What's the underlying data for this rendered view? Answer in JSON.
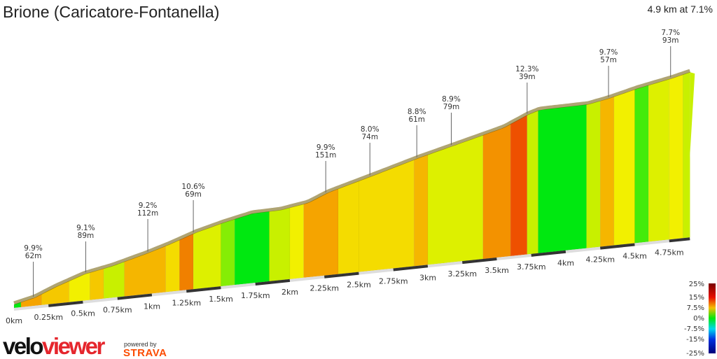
{
  "title": "Brione (Caricatore-Fontanella)",
  "summary": "4.9 km at 7.1%",
  "branding": {
    "logo_velo": "velo",
    "logo_viewer": "viewer",
    "powered_by": "powered by",
    "strava": "STRAVA",
    "strava_color": "#fc4c02",
    "viewer_color": "#e5262d"
  },
  "chart_data": {
    "type": "area",
    "title": "Brione (Caricatore-Fontanella)",
    "xlabel": "",
    "ylabel": "",
    "xlim": [
      0,
      4.9
    ],
    "x_ticks": [
      "0km",
      "0.25km",
      "0.5km",
      "0.75km",
      "1km",
      "1.25km",
      "1.5km",
      "1.75km",
      "2km",
      "2.25km",
      "2.5km",
      "2.75km",
      "3km",
      "3.25km",
      "3.5km",
      "3.75km",
      "4km",
      "4.25km",
      "4.5km",
      "4.75km"
    ],
    "profile": [
      [
        0,
        0
      ],
      [
        0.15,
        10
      ],
      [
        0.3,
        28
      ],
      [
        0.51,
        49
      ],
      [
        0.71,
        60
      ],
      [
        0.96,
        79
      ],
      [
        1.12,
        93
      ],
      [
        1.32,
        113
      ],
      [
        1.52,
        128
      ],
      [
        1.73,
        141
      ],
      [
        1.93,
        142
      ],
      [
        2.13,
        151
      ],
      [
        2.28,
        169
      ],
      [
        2.59,
        194
      ],
      [
        2.94,
        223
      ],
      [
        3.2,
        242
      ],
      [
        3.55,
        268
      ],
      [
        3.73,
        291
      ],
      [
        3.81,
        298
      ],
      [
        4.16,
        299
      ],
      [
        4.31,
        307
      ],
      [
        4.52,
        322
      ],
      [
        4.77,
        336
      ],
      [
        4.9,
        345
      ]
    ],
    "grade_segments": [
      [
        0,
        0
      ],
      [
        0.05,
        9
      ],
      [
        0.2,
        7
      ],
      [
        0.4,
        5
      ],
      [
        0.55,
        7
      ],
      [
        0.65,
        3
      ],
      [
        0.8,
        8
      ],
      [
        1.1,
        6
      ],
      [
        1.2,
        11
      ],
      [
        1.3,
        4
      ],
      [
        1.5,
        2
      ],
      [
        1.6,
        0
      ],
      [
        1.85,
        3
      ],
      [
        2.0,
        5
      ],
      [
        2.1,
        9
      ],
      [
        2.35,
        6
      ],
      [
        2.5,
        6
      ],
      [
        2.9,
        8
      ],
      [
        3.0,
        4
      ],
      [
        3.4,
        10
      ],
      [
        3.6,
        13
      ],
      [
        3.72,
        3
      ],
      [
        3.8,
        0
      ],
      [
        4.15,
        3
      ],
      [
        4.25,
        8
      ],
      [
        4.35,
        5
      ],
      [
        4.5,
        1
      ],
      [
        4.6,
        4
      ],
      [
        4.75,
        5
      ],
      [
        4.85,
        3
      ]
    ],
    "annotations": [
      {
        "km": 0.14,
        "grade": "9.9%",
        "length": "62m"
      },
      {
        "km": 0.52,
        "grade": "9.1%",
        "length": "89m"
      },
      {
        "km": 0.97,
        "grade": "9.2%",
        "length": "112m"
      },
      {
        "km": 1.3,
        "grade": "10.6%",
        "length": "69m"
      },
      {
        "km": 2.26,
        "grade": "9.9%",
        "length": "151m"
      },
      {
        "km": 2.58,
        "grade": "8.0%",
        "length": "74m"
      },
      {
        "km": 2.92,
        "grade": "8.8%",
        "length": "61m"
      },
      {
        "km": 3.17,
        "grade": "8.9%",
        "length": "79m"
      },
      {
        "km": 3.72,
        "grade": "12.3%",
        "length": "39m"
      },
      {
        "km": 4.31,
        "grade": "9.7%",
        "length": "57m"
      },
      {
        "km": 4.76,
        "grade": "7.7%",
        "length": "93m"
      }
    ],
    "legend": {
      "labels": [
        "25%",
        "15%",
        "7.5%",
        "0%",
        "-7.5%",
        "-15%",
        "-25%"
      ],
      "placement": "bottom-right"
    },
    "colorscale": [
      [
        -25,
        "#00007a"
      ],
      [
        -15,
        "#0030e0"
      ],
      [
        -7.5,
        "#00d8f0"
      ],
      [
        0,
        "#00e810"
      ],
      [
        3,
        "#c8f000"
      ],
      [
        5,
        "#f2f000"
      ],
      [
        7,
        "#f5c800"
      ],
      [
        9,
        "#f5a400"
      ],
      [
        11,
        "#f08000"
      ],
      [
        13,
        "#ee5000"
      ],
      [
        15,
        "#e81000"
      ],
      [
        25,
        "#7a0000"
      ]
    ]
  }
}
